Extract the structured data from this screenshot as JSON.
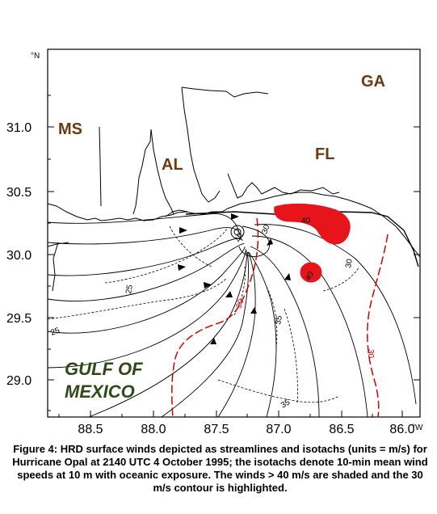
{
  "axes": {
    "y_unit": "°N",
    "x_unit": "°W",
    "y_ticks": [
      "31.0",
      "30.5",
      "30.0",
      "29.5",
      "29.0"
    ],
    "x_ticks": [
      "88.5",
      "88.0",
      "87.5",
      "87.0",
      "86.5",
      "86.0"
    ]
  },
  "labels": {
    "states": [
      {
        "id": "ms",
        "text": "MS"
      },
      {
        "id": "al",
        "text": "AL"
      },
      {
        "id": "fl",
        "text": "FL"
      },
      {
        "id": "ga",
        "text": "GA"
      }
    ],
    "gulf_line1": "GULF OF",
    "gulf_line2": "MEXICO"
  },
  "contour_labels": [
    "25",
    "25",
    "35",
    "35",
    "40",
    "40",
    "30",
    "30",
    "30",
    "30",
    "40"
  ],
  "colors": {
    "state_label": "#6b3a12",
    "gulf_label": "#2f4a17",
    "highlight_30": "#d10000",
    "shade_gt40": "#e8141c"
  },
  "caption": "Figure 4: HRD surface winds depicted as streamlines and isotachs (units = m/s) for Hurricane Opal at 2140 UTC 4 October 1995; the isotachs denote 10-min mean wind speeds at 10 m with oceanic exposure. The winds > 40 m/s are shaded and the 30 m/s contour is highlighted."
}
